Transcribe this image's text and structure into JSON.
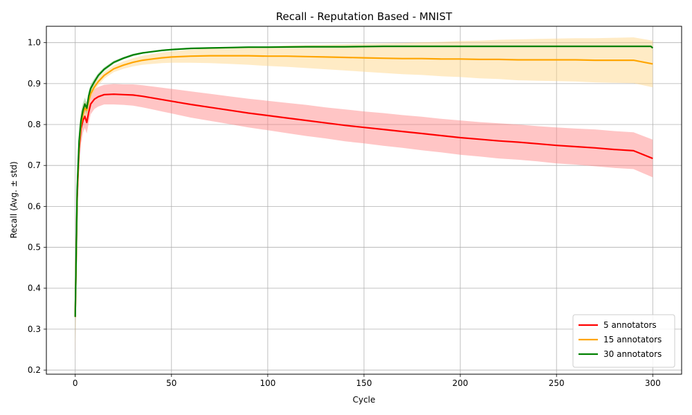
{
  "chart_data": {
    "type": "line",
    "title": "Recall - Reputation Based - MNIST",
    "xlabel": "Cycle",
    "ylabel": "Recall (Avg. ± std)",
    "xlim": [
      -15,
      315
    ],
    "ylim": [
      0.19,
      1.04
    ],
    "xticks": [
      0,
      50,
      100,
      150,
      200,
      250,
      300
    ],
    "yticks": [
      0.2,
      0.3,
      0.4,
      0.5,
      0.6,
      0.7,
      0.8,
      0.9,
      1.0
    ],
    "xtick_labels": [
      "0",
      "50",
      "100",
      "150",
      "200",
      "250",
      "300"
    ],
    "ytick_labels": [
      "0.2",
      "0.3",
      "0.4",
      "0.5",
      "0.6",
      "0.7",
      "0.8",
      "0.9",
      "1.0"
    ],
    "grid": true,
    "legend_position": "bottom-right",
    "series": [
      {
        "name": "5 annotators",
        "color": "#ff0000",
        "band_color": "#ff7f7f",
        "x": [
          0,
          1,
          2,
          3,
          4,
          5,
          6,
          7,
          8,
          10,
          12,
          15,
          20,
          25,
          30,
          35,
          40,
          45,
          50,
          55,
          60,
          70,
          80,
          90,
          100,
          110,
          120,
          130,
          140,
          150,
          160,
          170,
          180,
          190,
          200,
          210,
          220,
          230,
          240,
          250,
          260,
          270,
          280,
          290,
          300
        ],
        "y": [
          0.33,
          0.62,
          0.74,
          0.79,
          0.81,
          0.82,
          0.805,
          0.83,
          0.85,
          0.862,
          0.868,
          0.873,
          0.874,
          0.873,
          0.872,
          0.869,
          0.865,
          0.861,
          0.857,
          0.853,
          0.849,
          0.842,
          0.835,
          0.828,
          0.822,
          0.816,
          0.81,
          0.804,
          0.798,
          0.793,
          0.788,
          0.783,
          0.778,
          0.773,
          0.768,
          0.764,
          0.76,
          0.757,
          0.753,
          0.749,
          0.746,
          0.743,
          0.739,
          0.736,
          0.717
        ],
        "std": [
          0.09,
          0.06,
          0.04,
          0.035,
          0.03,
          0.028,
          0.027,
          0.026,
          0.025,
          0.024,
          0.024,
          0.024,
          0.025,
          0.025,
          0.026,
          0.027,
          0.028,
          0.029,
          0.03,
          0.031,
          0.032,
          0.033,
          0.034,
          0.035,
          0.036,
          0.037,
          0.038,
          0.038,
          0.039,
          0.039,
          0.04,
          0.04,
          0.041,
          0.041,
          0.042,
          0.042,
          0.043,
          0.043,
          0.043,
          0.044,
          0.044,
          0.045,
          0.045,
          0.045,
          0.046
        ]
      },
      {
        "name": "15 annotators",
        "color": "#ffa500",
        "band_color": "#ffd27f",
        "x": [
          0,
          1,
          2,
          3,
          4,
          5,
          6,
          7,
          8,
          10,
          12,
          15,
          20,
          25,
          30,
          35,
          40,
          45,
          50,
          60,
          70,
          80,
          90,
          100,
          110,
          120,
          130,
          140,
          150,
          160,
          170,
          180,
          190,
          200,
          210,
          220,
          230,
          240,
          250,
          260,
          270,
          280,
          290,
          300
        ],
        "y": [
          0.33,
          0.63,
          0.75,
          0.8,
          0.825,
          0.84,
          0.835,
          0.858,
          0.875,
          0.892,
          0.905,
          0.92,
          0.936,
          0.945,
          0.952,
          0.957,
          0.96,
          0.963,
          0.965,
          0.967,
          0.968,
          0.968,
          0.968,
          0.967,
          0.967,
          0.966,
          0.965,
          0.964,
          0.963,
          0.962,
          0.961,
          0.961,
          0.96,
          0.96,
          0.959,
          0.959,
          0.958,
          0.958,
          0.958,
          0.958,
          0.957,
          0.957,
          0.957,
          0.948
        ],
        "std": [
          0.09,
          0.05,
          0.035,
          0.028,
          0.022,
          0.018,
          0.016,
          0.014,
          0.012,
          0.01,
          0.009,
          0.008,
          0.008,
          0.009,
          0.01,
          0.011,
          0.012,
          0.013,
          0.014,
          0.016,
          0.018,
          0.02,
          0.022,
          0.024,
          0.026,
          0.028,
          0.03,
          0.032,
          0.034,
          0.036,
          0.038,
          0.04,
          0.042,
          0.044,
          0.046,
          0.048,
          0.05,
          0.051,
          0.052,
          0.053,
          0.054,
          0.055,
          0.056,
          0.057
        ]
      },
      {
        "name": "30 annotators",
        "color": "#008000",
        "band_color": "#7fbf7f",
        "x": [
          0,
          1,
          2,
          3,
          4,
          5,
          6,
          7,
          8,
          10,
          12,
          15,
          20,
          25,
          30,
          35,
          40,
          45,
          50,
          60,
          70,
          80,
          90,
          100,
          120,
          140,
          160,
          180,
          200,
          220,
          240,
          260,
          280,
          299,
          300
        ],
        "y": [
          0.33,
          0.64,
          0.76,
          0.81,
          0.835,
          0.85,
          0.84,
          0.87,
          0.888,
          0.905,
          0.92,
          0.935,
          0.952,
          0.962,
          0.97,
          0.975,
          0.978,
          0.981,
          0.983,
          0.986,
          0.987,
          0.988,
          0.989,
          0.989,
          0.99,
          0.99,
          0.991,
          0.991,
          0.991,
          0.991,
          0.991,
          0.991,
          0.991,
          0.991,
          0.987
        ],
        "std": [
          0.08,
          0.05,
          0.03,
          0.022,
          0.018,
          0.016,
          0.014,
          0.012,
          0.01,
          0.008,
          0.006,
          0.005,
          0.004,
          0.003,
          0.003,
          0.002,
          0.002,
          0.002,
          0.002,
          0.002,
          0.002,
          0.002,
          0.002,
          0.002,
          0.002,
          0.002,
          0.002,
          0.002,
          0.002,
          0.002,
          0.002,
          0.002,
          0.002,
          0.002,
          0.002
        ]
      }
    ]
  }
}
